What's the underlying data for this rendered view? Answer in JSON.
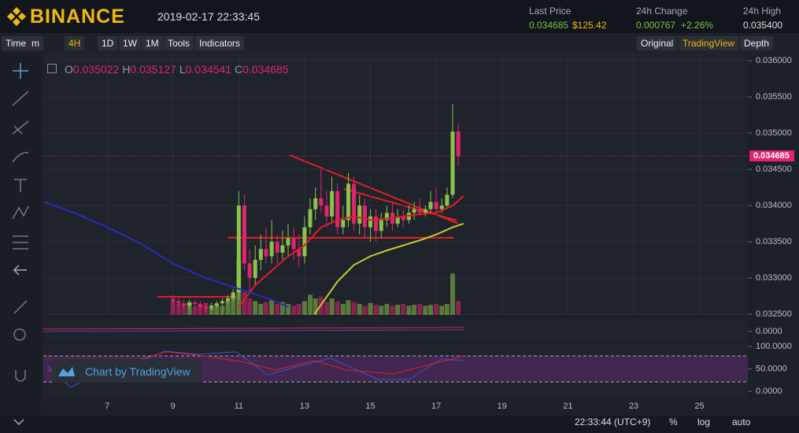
{
  "header": {
    "logo": "BINANCE",
    "datetime": "2019-02-17 22:33:45",
    "last_price": {
      "label": "Last Price",
      "value": "0.034685",
      "usd": "$125.42"
    },
    "change": {
      "label": "24h Change",
      "value": "0.000767",
      "percent": "+2.26%"
    },
    "high": {
      "label": "24h High",
      "value": "0.035400"
    }
  },
  "toolbar": {
    "left": [
      "Time",
      "m",
      "4H",
      "1D",
      "1W",
      "1M",
      "Tools",
      "Indicators"
    ],
    "right": [
      "Original",
      "TradingView",
      "Depth"
    ]
  },
  "watermark": "Chart by TradingView",
  "footer": {
    "time": "22:33:44 (UTC+9)",
    "buttons": [
      "%",
      "log",
      "auto"
    ]
  },
  "chart_data": {
    "type": "candlestick",
    "legend": [
      {
        "key": "O",
        "value": 0.035022
      },
      {
        "key": "H",
        "value": 0.035127
      },
      {
        "key": "L",
        "value": 0.034541
      },
      {
        "key": "C",
        "value": 0.034685
      }
    ],
    "last": {
      "value": 0.034685,
      "label": "0.034685"
    },
    "xlim": [
      5.06,
      26.47
    ],
    "xticks": [
      7,
      9,
      11,
      13,
      15,
      17,
      19,
      21,
      23,
      25
    ],
    "ylim": [
      0.03249,
      0.03611
    ],
    "yticks": [
      {
        "value": 0.036,
        "label": "0.036000"
      },
      {
        "value": 0.0355,
        "label": "0.035500"
      },
      {
        "value": 0.035,
        "label": "0.035000"
      },
      {
        "value": 0.0345,
        "label": "0.034500"
      },
      {
        "value": 0.034,
        "label": "0.034000"
      },
      {
        "value": 0.0335,
        "label": "0.033500"
      },
      {
        "value": 0.033,
        "label": "0.033000"
      },
      {
        "value": 0.0325,
        "label": "0.032500"
      }
    ],
    "up_color": "#8bc34a",
    "down_color": "#e0246f",
    "t": [
      9,
      9.17,
      9.33,
      9.5,
      9.67,
      9.83,
      10,
      10.17,
      10.33,
      10.5,
      10.67,
      10.83,
      11,
      11.17,
      11.33,
      11.5,
      11.67,
      11.83,
      12,
      12.17,
      12.33,
      12.5,
      12.67,
      12.83,
      13,
      13.17,
      13.33,
      13.5,
      13.67,
      13.83,
      14,
      14.17,
      14.33,
      14.5,
      14.67,
      14.83,
      15,
      15.17,
      15.33,
      15.5,
      15.67,
      15.83,
      16,
      16.17,
      16.33,
      16.5,
      16.67,
      16.83,
      17,
      17.17,
      17.33,
      17.5,
      17.67
    ],
    "open": [
      0.0327,
      0.03268,
      0.03265,
      0.03262,
      0.03266,
      0.03264,
      0.0326,
      0.03258,
      0.03262,
      0.03265,
      0.03268,
      0.03272,
      0.0328,
      0.034,
      0.0332,
      0.033,
      0.03325,
      0.0334,
      0.0333,
      0.0335,
      0.03335,
      0.03345,
      0.03355,
      0.0334,
      0.0333,
      0.0337,
      0.03395,
      0.0341,
      0.034,
      0.03385,
      0.0342,
      0.0337,
      0.0338,
      0.0343,
      0.03375,
      0.034,
      0.0337,
      0.03385,
      0.03365,
      0.0338,
      0.0339,
      0.03375,
      0.03385,
      0.0338,
      0.0339,
      0.03395,
      0.0339,
      0.03395,
      0.03405,
      0.03395,
      0.034,
      0.03415,
      0.035022
    ],
    "high": [
      0.03276,
      0.03272,
      0.0327,
      0.0327,
      0.0327,
      0.03268,
      0.03265,
      0.03266,
      0.03268,
      0.03272,
      0.03276,
      0.03285,
      0.0342,
      0.03415,
      0.0334,
      0.03345,
      0.0336,
      0.0337,
      0.0338,
      0.0336,
      0.03365,
      0.03375,
      0.0337,
      0.0336,
      0.03385,
      0.0341,
      0.03425,
      0.0345,
      0.0342,
      0.0344,
      0.0343,
      0.034,
      0.03445,
      0.0344,
      0.03415,
      0.0341,
      0.03395,
      0.03395,
      0.0339,
      0.034,
      0.03405,
      0.03395,
      0.03395,
      0.034,
      0.03405,
      0.0341,
      0.034,
      0.0342,
      0.03425,
      0.0341,
      0.03425,
      0.0354,
      0.035127
    ],
    "low": [
      0.03262,
      0.0326,
      0.03258,
      0.03258,
      0.0326,
      0.03256,
      0.03254,
      0.03255,
      0.03258,
      0.03262,
      0.03264,
      0.03268,
      0.0327,
      0.0331,
      0.0328,
      0.0329,
      0.0331,
      0.0332,
      0.0332,
      0.0332,
      0.03325,
      0.0333,
      0.03325,
      0.03315,
      0.0332,
      0.0336,
      0.0338,
      0.0339,
      0.0337,
      0.03375,
      0.0336,
      0.0336,
      0.0337,
      0.03365,
      0.0336,
      0.03355,
      0.0335,
      0.0335,
      0.03355,
      0.0337,
      0.03365,
      0.0337,
      0.0337,
      0.03375,
      0.0338,
      0.03385,
      0.03385,
      0.0339,
      0.0339,
      0.0339,
      0.03395,
      0.0341,
      0.034541
    ],
    "close": [
      0.03268,
      0.03265,
      0.03262,
      0.03266,
      0.03264,
      0.0326,
      0.03258,
      0.03262,
      0.03265,
      0.03268,
      0.03272,
      0.0328,
      0.034,
      0.0332,
      0.033,
      0.03325,
      0.0334,
      0.0333,
      0.0335,
      0.03335,
      0.03345,
      0.03355,
      0.0334,
      0.0333,
      0.0337,
      0.03395,
      0.0341,
      0.034,
      0.03385,
      0.0342,
      0.0337,
      0.0338,
      0.0343,
      0.03375,
      0.034,
      0.0337,
      0.03385,
      0.03365,
      0.0338,
      0.0339,
      0.03375,
      0.03385,
      0.0338,
      0.0339,
      0.03395,
      0.0339,
      0.03395,
      0.03405,
      0.03395,
      0.034,
      0.03415,
      0.035022,
      0.034685
    ],
    "volume": [
      18,
      12,
      10,
      14,
      9,
      11,
      13,
      8,
      12,
      10,
      15,
      20,
      60,
      25,
      18,
      15,
      12,
      14,
      16,
      12,
      14,
      12,
      10,
      12,
      15,
      22,
      18,
      20,
      14,
      18,
      15,
      12,
      16,
      14,
      12,
      10,
      13,
      11,
      10,
      12,
      10,
      11,
      12,
      10,
      11,
      12,
      10,
      11,
      12,
      10,
      12,
      45,
      15
    ],
    "vlim": [
      0,
      60
    ],
    "moving_averages": [
      {
        "color": "#e02020",
        "t": [
          11,
          11.5,
          12,
          12.5,
          13,
          13.5,
          14,
          14.5,
          15,
          15.5,
          16,
          16.5,
          17,
          17.5,
          17.83
        ],
        "values": [
          0.0326,
          0.0329,
          0.0331,
          0.0333,
          0.03345,
          0.0337,
          0.0338,
          0.03385,
          0.0338,
          0.03382,
          0.03385,
          0.03388,
          0.0339,
          0.034,
          0.03413
        ]
      },
      {
        "color": "#c8c832",
        "t": [
          13.3,
          14,
          14.5,
          15,
          15.5,
          16,
          16.5,
          17,
          17.5,
          17.83
        ],
        "values": [
          0.0325,
          0.03295,
          0.03318,
          0.0333,
          0.03338,
          0.03345,
          0.03352,
          0.0336,
          0.0337,
          0.03375
        ]
      },
      {
        "color": "#2a2ab8",
        "t": [
          5.1,
          6,
          7,
          8,
          9,
          10,
          11,
          12,
          12.5
        ],
        "values": [
          0.03405,
          0.0339,
          0.0337,
          0.03348,
          0.0332,
          0.033,
          0.03285,
          0.0327,
          0.0326
        ]
      }
    ],
    "macd": {
      "ylim": [
        -0.0011,
        0.0018
      ],
      "yticks": [
        {
          "value": 0,
          "label": "0.0000"
        }
      ]
    },
    "rsi": {
      "ylim": [
        -26,
        107
      ],
      "yticks": [
        {
          "value": 100,
          "label": "100.0000"
        },
        {
          "value": 50,
          "label": "50.0000"
        },
        {
          "value": 0,
          "label": "0.0000"
        }
      ],
      "band": [
        21,
        79
      ]
    }
  }
}
